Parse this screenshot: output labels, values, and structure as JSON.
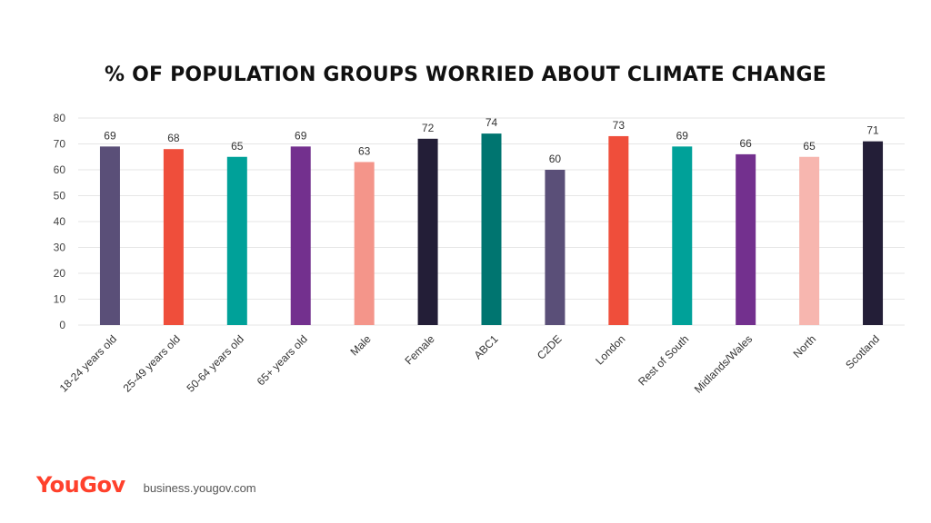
{
  "title": "% OF POPULATION GROUPS WORRIED ABOUT CLIMATE CHANGE",
  "footer": {
    "logo": "YouGov",
    "website": "business.yougov.com"
  },
  "colors": {
    "logo": "#ff412c"
  },
  "chart_data": {
    "type": "bar",
    "title": "% OF POPULATION GROUPS WORRIED ABOUT CLIMATE CHANGE",
    "xlabel": "",
    "ylabel": "",
    "ylim": [
      0,
      80
    ],
    "yticks": [
      0,
      10,
      20,
      30,
      40,
      50,
      60,
      70,
      80
    ],
    "grid": true,
    "categories": [
      "18-24 years old",
      "25-49 years old",
      "50-64 years old",
      "65+ years old",
      "Male",
      "Female",
      "ABC1",
      "C2DE",
      "London",
      "Rest of South",
      "Midlands/Wales",
      "North",
      "Scotland"
    ],
    "values": [
      69,
      68,
      65,
      69,
      63,
      72,
      74,
      60,
      73,
      69,
      66,
      65,
      71
    ],
    "bar_colors": [
      "#5a4f78",
      "#ef4e3b",
      "#00a199",
      "#73308e",
      "#f4958a",
      "#231e37",
      "#007570",
      "#5a4f78",
      "#ef4e3b",
      "#00a199",
      "#73308e",
      "#f7b6af",
      "#231e37"
    ]
  }
}
